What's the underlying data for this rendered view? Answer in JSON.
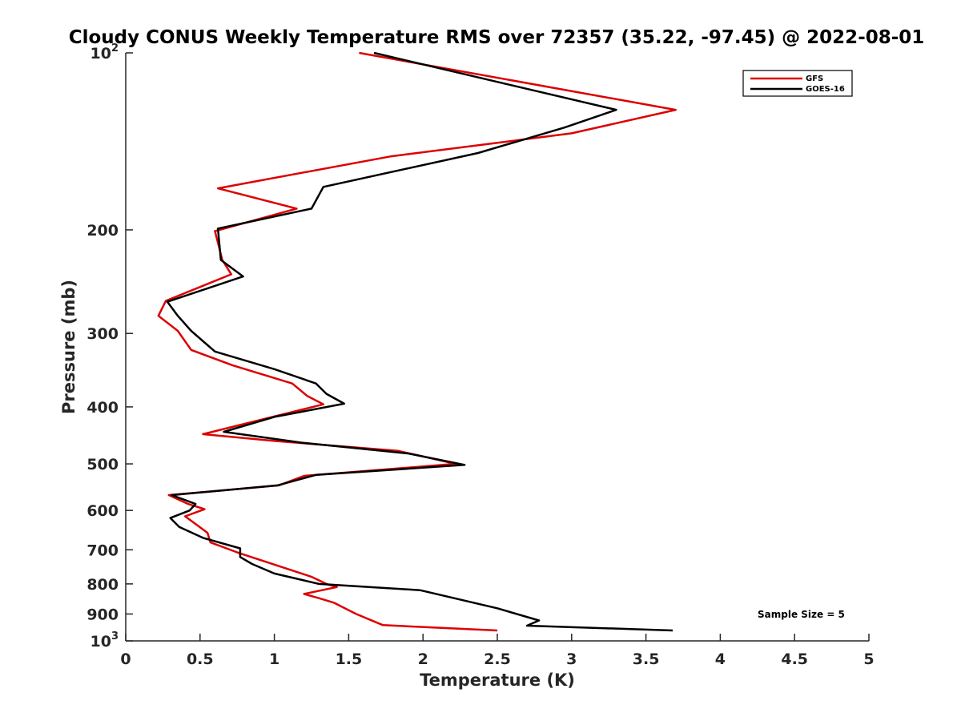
{
  "chart_data": {
    "type": "line",
    "title": "Cloudy CONUS Weekly Temperature RMS over 72357 (35.22, -97.45) @ 2022-08-01",
    "xlabel": "Temperature (K)",
    "ylabel": "Pressure (mb)",
    "xlim": [
      0,
      5
    ],
    "ylim": [
      100,
      1000
    ],
    "y_scale": "log",
    "y_reversed": true,
    "grid": false,
    "legend_position": "top-right",
    "x_ticks": [
      {
        "value": 0,
        "label": "0"
      },
      {
        "value": 0.5,
        "label": "0.5"
      },
      {
        "value": 1,
        "label": "1"
      },
      {
        "value": 1.5,
        "label": "1.5"
      },
      {
        "value": 2,
        "label": "2"
      },
      {
        "value": 2.5,
        "label": "2.5"
      },
      {
        "value": 3,
        "label": "3"
      },
      {
        "value": 3.5,
        "label": "3.5"
      },
      {
        "value": 4,
        "label": "4"
      },
      {
        "value": 4.5,
        "label": "4.5"
      },
      {
        "value": 5,
        "label": "5"
      }
    ],
    "y_ticks": [
      {
        "value": 100,
        "label": "10",
        "sup": "2"
      },
      {
        "value": 200,
        "label": "200"
      },
      {
        "value": 300,
        "label": "300"
      },
      {
        "value": 400,
        "label": "400"
      },
      {
        "value": 500,
        "label": "500"
      },
      {
        "value": 600,
        "label": "600"
      },
      {
        "value": 700,
        "label": "700"
      },
      {
        "value": 800,
        "label": "800"
      },
      {
        "value": 900,
        "label": "900"
      },
      {
        "value": 1000,
        "label": "10",
        "sup": "3"
      }
    ],
    "series": [
      {
        "name": "GFS",
        "color": "#dd0000",
        "points": [
          [
            1.57,
            100
          ],
          [
            3.7,
            125
          ],
          [
            3.0,
            137
          ],
          [
            1.78,
            150
          ],
          [
            0.62,
            170
          ],
          [
            1.15,
            184
          ],
          [
            0.6,
            201
          ],
          [
            0.65,
            225
          ],
          [
            0.71,
            238
          ],
          [
            0.27,
            264
          ],
          [
            0.22,
            280
          ],
          [
            0.35,
            297
          ],
          [
            0.44,
            320
          ],
          [
            0.72,
            340
          ],
          [
            1.12,
            365
          ],
          [
            1.22,
            383
          ],
          [
            1.33,
            396
          ],
          [
            0.52,
            445
          ],
          [
            1.0,
            457
          ],
          [
            1.83,
            475
          ],
          [
            2.22,
            500
          ],
          [
            1.2,
            524
          ],
          [
            1.03,
            544
          ],
          [
            0.29,
            565
          ],
          [
            0.42,
            585
          ],
          [
            0.53,
            597
          ],
          [
            0.4,
            614
          ],
          [
            0.55,
            655
          ],
          [
            0.57,
            680
          ],
          [
            0.75,
            707
          ],
          [
            1.25,
            778
          ],
          [
            1.35,
            800
          ],
          [
            1.42,
            810
          ],
          [
            1.2,
            832
          ],
          [
            1.3,
            846
          ],
          [
            1.4,
            861
          ],
          [
            1.55,
            900
          ],
          [
            1.73,
            940
          ],
          [
            2.5,
            960
          ]
        ]
      },
      {
        "name": "GOES-16",
        "color": "#000000",
        "points": [
          [
            1.67,
            100
          ],
          [
            3.3,
            125
          ],
          [
            2.95,
            134
          ],
          [
            2.37,
            148
          ],
          [
            1.33,
            169
          ],
          [
            1.25,
            184
          ],
          [
            0.62,
            199
          ],
          [
            0.64,
            225
          ],
          [
            0.79,
            240
          ],
          [
            0.28,
            265
          ],
          [
            0.35,
            280
          ],
          [
            0.44,
            297
          ],
          [
            0.6,
            322
          ],
          [
            1.0,
            345
          ],
          [
            1.28,
            365
          ],
          [
            1.35,
            380
          ],
          [
            1.47,
            395
          ],
          [
            1.0,
            416
          ],
          [
            0.66,
            441
          ],
          [
            1.18,
            460
          ],
          [
            1.9,
            480
          ],
          [
            2.28,
            502
          ],
          [
            1.28,
            522
          ],
          [
            1.02,
            544
          ],
          [
            0.31,
            565
          ],
          [
            0.47,
            585
          ],
          [
            0.43,
            600
          ],
          [
            0.3,
            618
          ],
          [
            0.36,
            640
          ],
          [
            0.52,
            668
          ],
          [
            0.77,
            696
          ],
          [
            0.77,
            720
          ],
          [
            0.85,
            740
          ],
          [
            1.0,
            768
          ],
          [
            1.3,
            800
          ],
          [
            1.98,
            820
          ],
          [
            2.5,
            880
          ],
          [
            2.78,
            923
          ],
          [
            2.7,
            942
          ],
          [
            3.68,
            960
          ]
        ]
      }
    ],
    "annotation": "Sample Size = 5"
  }
}
